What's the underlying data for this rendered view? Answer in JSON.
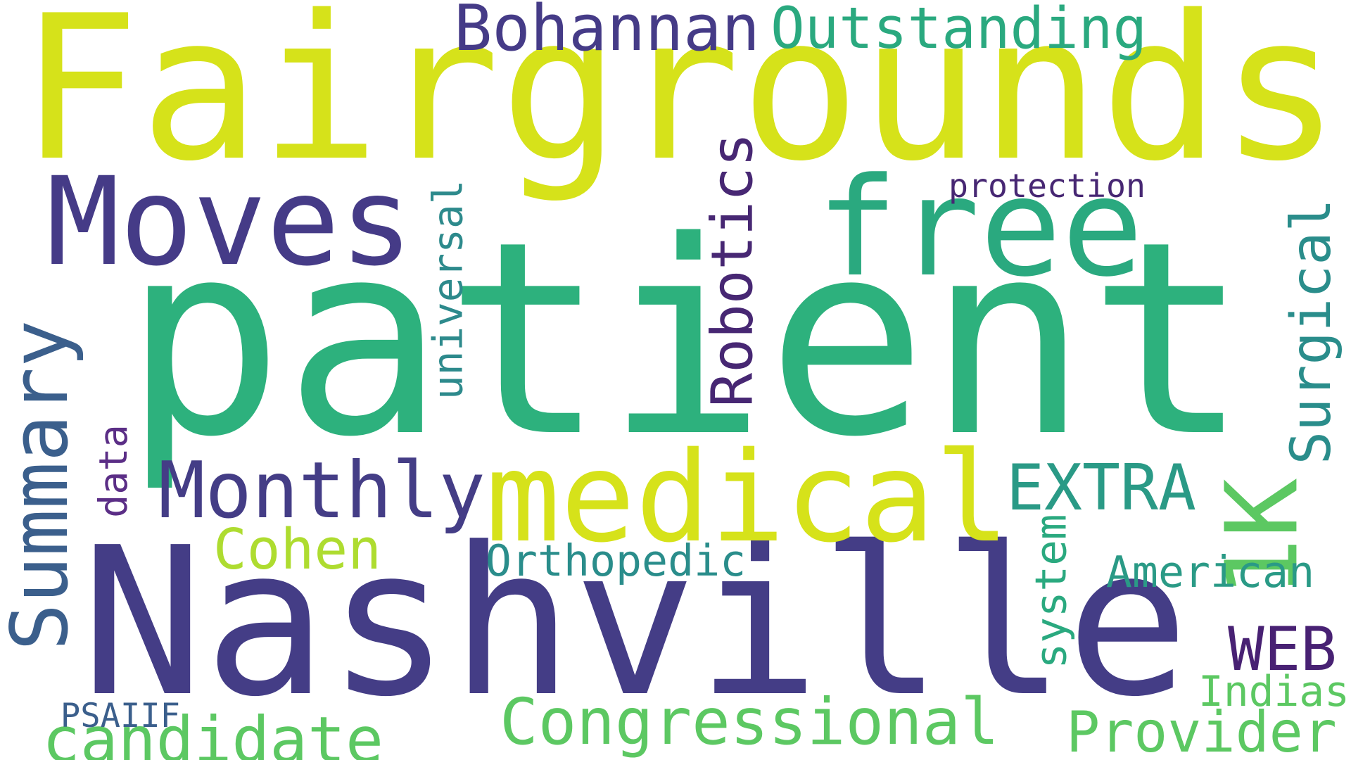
{
  "words": [
    {
      "text": "Fairgrounds",
      "color": "#d6e21a"
    },
    {
      "text": "patient",
      "color": "#2db17d"
    },
    {
      "text": "Nashville",
      "color": "#443d86"
    },
    {
      "text": "medical",
      "color": "#d6e21a"
    },
    {
      "text": "free",
      "color": "#2aa97f"
    },
    {
      "text": "Moves",
      "color": "#453b87"
    },
    {
      "text": "Monthly",
      "color": "#443d86"
    },
    {
      "text": "Summary",
      "color": "#3b5f8c"
    },
    {
      "text": "Robotics",
      "color": "#472773"
    },
    {
      "text": "Surgical",
      "color": "#2a8d8b"
    },
    {
      "text": "1K",
      "color": "#5cc862"
    },
    {
      "text": "Congressional",
      "color": "#5cc862"
    },
    {
      "text": "candidate",
      "color": "#5cc862"
    },
    {
      "text": "Provider",
      "color": "#5cc862"
    },
    {
      "text": "Bohannan",
      "color": "#453b87"
    },
    {
      "text": "Outstanding",
      "color": "#2aa97f"
    },
    {
      "text": "EXTRA",
      "color": "#2a9a86"
    },
    {
      "text": "Cohen",
      "color": "#aedc30"
    },
    {
      "text": "Orthopedic",
      "color": "#2a8d8b"
    },
    {
      "text": "WEB",
      "color": "#482173"
    },
    {
      "text": "American",
      "color": "#2a9a86"
    },
    {
      "text": "Indias",
      "color": "#5cc862"
    },
    {
      "text": "universal",
      "color": "#2d8a8c"
    },
    {
      "text": "system",
      "color": "#2aa97f"
    },
    {
      "text": "data",
      "color": "#5b2e86"
    },
    {
      "text": "protection",
      "color": "#472773"
    },
    {
      "text": "PSAIIF",
      "color": "#3b5f8c"
    }
  ]
}
